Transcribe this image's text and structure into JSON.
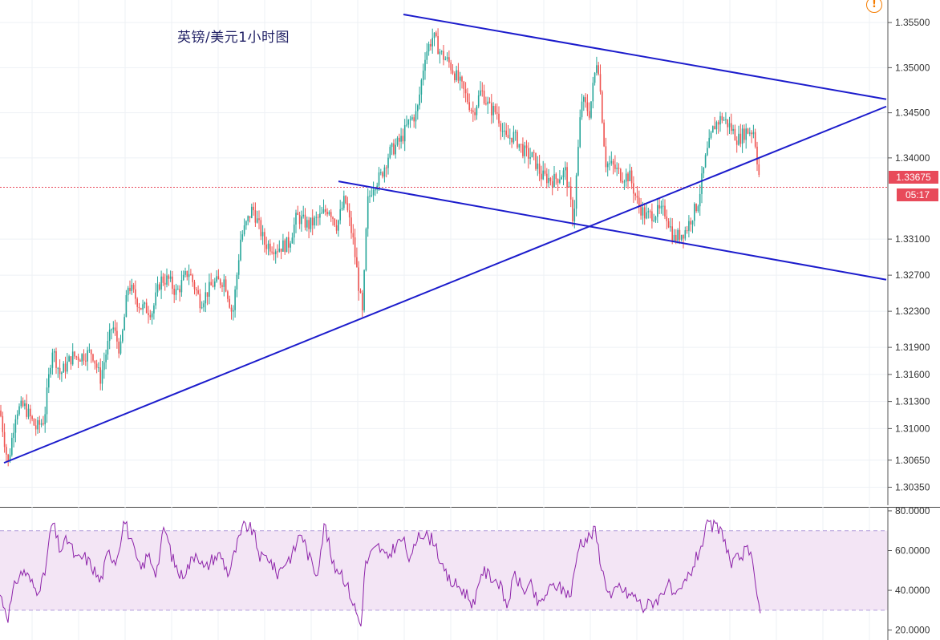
{
  "chart_data": [
    {
      "type": "candlestick",
      "title": "英镑/美元1小时图",
      "ylim": [
        1.3015,
        1.3575
      ],
      "yticks": [
        "1.35500",
        "1.35000",
        "1.34500",
        "1.34000",
        "1.33100",
        "1.32700",
        "1.32300",
        "1.31900",
        "1.31600",
        "1.31300",
        "1.31000",
        "1.30650",
        "1.30350"
      ],
      "last_price": "1.33675",
      "countdown": "05:17",
      "grid": true,
      "colors": {
        "up": "#26a69a",
        "down": "#ef5350",
        "trendline": "#1c1ccc",
        "last_price_line": "#e84a5a"
      },
      "price_path": [
        [
          0,
          1.312
        ],
        [
          10,
          1.306
        ],
        [
          20,
          1.312
        ],
        [
          30,
          1.3125
        ],
        [
          45,
          1.31
        ],
        [
          55,
          1.311
        ],
        [
          65,
          1.319
        ],
        [
          75,
          1.316
        ],
        [
          90,
          1.318
        ],
        [
          100,
          1.318
        ],
        [
          115,
          1.3185
        ],
        [
          125,
          1.3155
        ],
        [
          140,
          1.3215
        ],
        [
          150,
          1.3185
        ],
        [
          160,
          1.326
        ],
        [
          175,
          1.3235
        ],
        [
          190,
          1.323
        ],
        [
          200,
          1.3265
        ],
        [
          210,
          1.3265
        ],
        [
          220,
          1.325
        ],
        [
          235,
          1.3275
        ],
        [
          250,
          1.324
        ],
        [
          265,
          1.326
        ],
        [
          280,
          1.3265
        ],
        [
          290,
          1.3225
        ],
        [
          300,
          1.331
        ],
        [
          315,
          1.3345
        ],
        [
          330,
          1.3305
        ],
        [
          345,
          1.33
        ],
        [
          360,
          1.3305
        ],
        [
          370,
          1.3335
        ],
        [
          385,
          1.3325
        ],
        [
          400,
          1.3335
        ],
        [
          410,
          1.3345
        ],
        [
          420,
          1.3325
        ],
        [
          430,
          1.3355
        ],
        [
          440,
          1.331
        ],
        [
          452,
          1.3225
        ],
        [
          458,
          1.335
        ],
        [
          465,
          1.337
        ],
        [
          475,
          1.338
        ],
        [
          485,
          1.3405
        ],
        [
          500,
          1.342
        ],
        [
          510,
          1.344
        ],
        [
          520,
          1.345
        ],
        [
          530,
          1.3515
        ],
        [
          540,
          1.3535
        ],
        [
          550,
          1.3515
        ],
        [
          560,
          1.3505
        ],
        [
          575,
          1.348
        ],
        [
          590,
          1.345
        ],
        [
          600,
          1.3475
        ],
        [
          610,
          1.3455
        ],
        [
          620,
          1.345
        ],
        [
          630,
          1.342
        ],
        [
          640,
          1.3425
        ],
        [
          655,
          1.3405
        ],
        [
          665,
          1.34
        ],
        [
          675,
          1.338
        ],
        [
          690,
          1.3375
        ],
        [
          705,
          1.3385
        ],
        [
          715,
          1.333
        ],
        [
          725,
          1.3465
        ],
        [
          735,
          1.345
        ],
        [
          745,
          1.3515
        ],
        [
          755,
          1.3395
        ],
        [
          765,
          1.339
        ],
        [
          775,
          1.338
        ],
        [
          785,
          1.338
        ],
        [
          795,
          1.335
        ],
        [
          805,
          1.3335
        ],
        [
          820,
          1.334
        ],
        [
          830,
          1.334
        ],
        [
          840,
          1.331
        ],
        [
          855,
          1.332
        ],
        [
          870,
          1.335
        ],
        [
          880,
          1.34
        ],
        [
          890,
          1.3435
        ],
        [
          900,
          1.3445
        ],
        [
          910,
          1.3435
        ],
        [
          920,
          1.342
        ],
        [
          930,
          1.343
        ],
        [
          940,
          1.343
        ],
        [
          948,
          1.3368
        ]
      ]
    },
    {
      "type": "line",
      "indicator": "RSI",
      "ylim": [
        15,
        82
      ],
      "yticks": [
        "80.0000",
        "60.0000",
        "40.0000",
        "20.0000"
      ],
      "band": [
        30,
        70
      ],
      "colors": {
        "line": "#8e24aa",
        "band_fill": "#f3e5f5",
        "band_edge": "#b39ddb"
      },
      "rsi_path": [
        [
          0,
          38
        ],
        [
          10,
          27
        ],
        [
          20,
          45
        ],
        [
          30,
          50
        ],
        [
          45,
          40
        ],
        [
          55,
          46
        ],
        [
          65,
          75
        ],
        [
          75,
          60
        ],
        [
          85,
          66
        ],
        [
          95,
          55
        ],
        [
          105,
          57
        ],
        [
          115,
          52
        ],
        [
          125,
          44
        ],
        [
          135,
          59
        ],
        [
          145,
          55
        ],
        [
          155,
          76
        ],
        [
          165,
          62
        ],
        [
          175,
          50
        ],
        [
          185,
          58
        ],
        [
          195,
          49
        ],
        [
          205,
          72
        ],
        [
          215,
          56
        ],
        [
          225,
          47
        ],
        [
          235,
          52
        ],
        [
          245,
          60
        ],
        [
          255,
          50
        ],
        [
          265,
          56
        ],
        [
          275,
          58
        ],
        [
          285,
          48
        ],
        [
          295,
          62
        ],
        [
          305,
          73
        ],
        [
          315,
          70
        ],
        [
          325,
          56
        ],
        [
          335,
          57
        ],
        [
          345,
          48
        ],
        [
          355,
          54
        ],
        [
          365,
          58
        ],
        [
          375,
          70
        ],
        [
          385,
          57
        ],
        [
          395,
          48
        ],
        [
          405,
          74
        ],
        [
          415,
          52
        ],
        [
          425,
          50
        ],
        [
          435,
          40
        ],
        [
          445,
          28
        ],
        [
          450,
          22
        ],
        [
          455,
          52
        ],
        [
          462,
          58
        ],
        [
          472,
          62
        ],
        [
          482,
          56
        ],
        [
          492,
          62
        ],
        [
          502,
          66
        ],
        [
          512,
          54
        ],
        [
          522,
          70
        ],
        [
          532,
          67
        ],
        [
          542,
          65
        ],
        [
          552,
          50
        ],
        [
          562,
          44
        ],
        [
          572,
          42
        ],
        [
          582,
          38
        ],
        [
          592,
          32
        ],
        [
          600,
          50
        ],
        [
          612,
          47
        ],
        [
          622,
          44
        ],
        [
          632,
          32
        ],
        [
          642,
          48
        ],
        [
          652,
          40
        ],
        [
          662,
          42
        ],
        [
          672,
          32
        ],
        [
          682,
          39
        ],
        [
          692,
          43
        ],
        [
          702,
          40
        ],
        [
          712,
          38
        ],
        [
          722,
          64
        ],
        [
          732,
          66
        ],
        [
          742,
          70
        ],
        [
          752,
          48
        ],
        [
          762,
          36
        ],
        [
          772,
          42
        ],
        [
          782,
          38
        ],
        [
          792,
          37
        ],
        [
          802,
          31
        ],
        [
          812,
          34
        ],
        [
          822,
          36
        ],
        [
          832,
          44
        ],
        [
          842,
          35
        ],
        [
          852,
          42
        ],
        [
          862,
          50
        ],
        [
          872,
          60
        ],
        [
          882,
          72
        ],
        [
          892,
          72
        ],
        [
          902,
          68
        ],
        [
          912,
          52
        ],
        [
          922,
          57
        ],
        [
          932,
          60
        ],
        [
          940,
          52
        ],
        [
          948,
          28
        ]
      ]
    }
  ]
}
